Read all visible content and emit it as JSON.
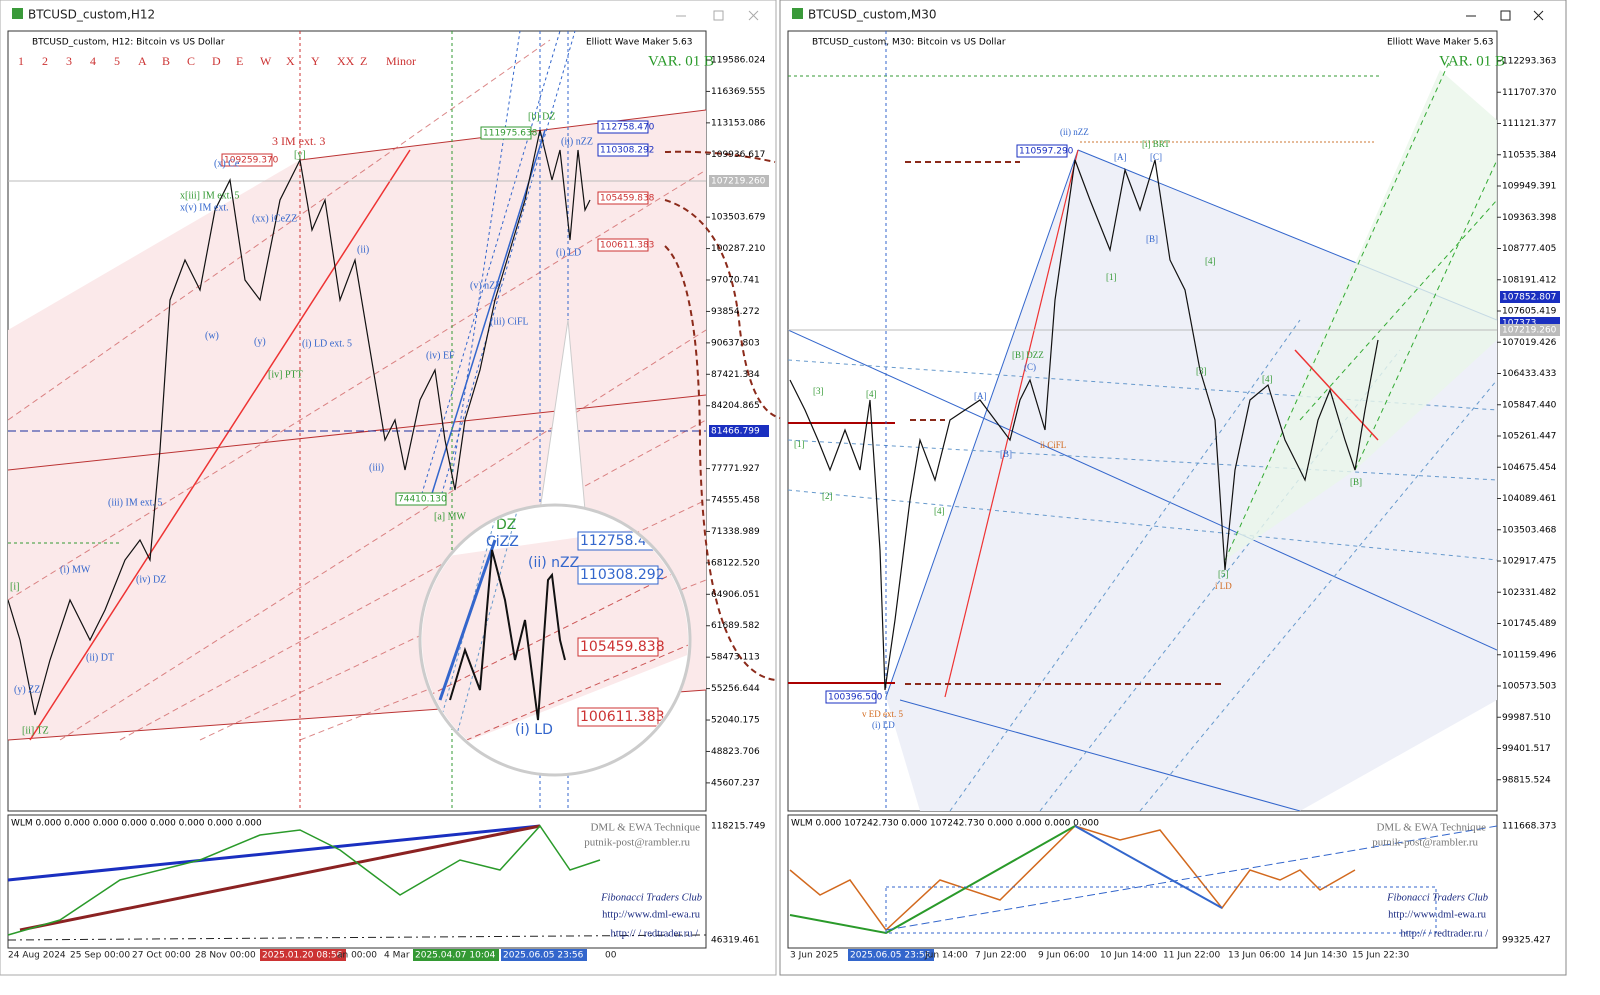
{
  "windows": [
    {
      "title": "BTCUSD_custom,H12",
      "header": "BTCUSD_custom, H12:  Bitcoin vs US Dollar",
      "brand": "Elliott Wave Maker 5.63",
      "variant": "VAR. 01 B",
      "wave_buttons": [
        "1",
        "2",
        "3",
        "4",
        "5",
        "A",
        "B",
        "C",
        "D",
        "E",
        "W",
        "X",
        "Y",
        "XX",
        "Z",
        "Minor"
      ],
      "price_axis": [
        "119586.024",
        "116369.555",
        "113153.086",
        "109936.617",
        "103503.679",
        "100287.210",
        "97070.741",
        "93854.272",
        "90637.803",
        "87421.334",
        "84204.865",
        "77771.927",
        "74555.458",
        "71338.989",
        "68122.520",
        "64906.051",
        "61689.582",
        "58473.113",
        "55256.644",
        "52040.175",
        "48823.706",
        "45607.237"
      ],
      "price_highlights": [
        "107219.260",
        "81466.799"
      ],
      "price_tags": [
        "112758.470",
        "110308.292",
        "105459.838",
        "100611.383",
        "109259.370",
        "111975.638",
        "74410.130"
      ],
      "time_axis": [
        "24 Aug 2024",
        "25 Sep 00:00",
        "27 Oct 00:00",
        "28 Nov 00:00",
        "2025.01.20 08:56",
        "an 00:00",
        "4 Mar",
        "2025.04.07 10:04",
        "2025.06.05 23:56",
        "00"
      ],
      "wave_labels": [
        "3 IM ext. 3",
        "(x) Ce",
        "[y]",
        "x[iii] IM ext. 5",
        "x(v) IM ext.",
        "(xx) iCeZZ",
        "(ii)",
        "(w)",
        "(y)",
        "(i) LD ext. 5",
        "[iv] PTT",
        "(iv) EF",
        "(iii)",
        "(v) nZZ",
        "(iii) CiFL",
        "[b] DZ",
        "(ii) nZZ",
        "(i) LD",
        "[a] MW",
        "(iii) IM ext. 5",
        "(iv) DZ",
        "(i) MW",
        "(ii) DT",
        "(y) ZZ",
        "[ii] TZ",
        "[i]"
      ],
      "zoom_labels": [
        "112758.470",
        "110308.292",
        "105459.838",
        "100611.383",
        "(ii) nZZ",
        "(i) LD",
        "DZ",
        "CiZZ"
      ],
      "indicator": {
        "header": "WLM 0.000 0.000 0.000 0.000 0.000 0.000 0.000 0.000",
        "axis": [
          "118215.749",
          "46319.461"
        ],
        "texts": [
          "DML & EWA Technique",
          "putnik-post@rambler.ru",
          "Fibonacci   Traders   Club",
          "http://www.dml-ewa.ru",
          "http:// / redtrader.ru /"
        ]
      }
    },
    {
      "title": "BTCUSD_custom,M30",
      "header": "BTCUSD_custom, M30:  Bitcoin vs US Dollar",
      "brand": "Elliott Wave Maker 5.63",
      "variant": "VAR. 01 B",
      "price_axis": [
        "112293.363",
        "111707.370",
        "111121.377",
        "110535.384",
        "109949.391",
        "109363.398",
        "108777.405",
        "108191.412",
        "107605.419",
        "107019.426",
        "106433.433",
        "105847.440",
        "105261.447",
        "104675.454",
        "104089.461",
        "103503.468",
        "102917.475",
        "102331.482",
        "101745.489",
        "101159.496",
        "100573.503",
        "99987.510",
        "99401.517",
        "98815.524"
      ],
      "price_highlights": [
        "107852.807",
        "107373",
        "107219.260"
      ],
      "price_tags": [
        "110597.290",
        "100396.500"
      ],
      "time_axis": [
        "3 Jun 2025",
        "2025.06.05 23:56",
        "Jun 14:00",
        "7 Jun 22:00",
        "9 Jun 06:00",
        "10 Jun 14:00",
        "11 Jun 22:00",
        "13 Jun 06:00",
        "14 Jun 14:30",
        "15 Jun 22:30"
      ],
      "wave_labels": [
        "(ii) nZZ",
        "[i] BRT",
        "[A]",
        "[C]",
        "[B]",
        "[1]",
        "[4]",
        "[3]",
        "[5]",
        "i LD",
        "[4]",
        "[B]",
        "[B] DZZ",
        "(C)",
        "[A]",
        "[B]",
        "[3]",
        "[1]",
        "[2]",
        "[4]",
        "[4]",
        "v ED ext. 5",
        "(i) LD",
        "ii CiFL"
      ],
      "indicator": {
        "header": "WLM 0.000  107242.730  0.000  107242.730  0.000  0.000  0.000  0.000",
        "axis": [
          "111668.373",
          "99325.427"
        ],
        "texts": [
          "DML & EWA Technique",
          "putnik-post@rambler.ru",
          "Fibonacci   Traders   Club",
          "http://www.dml-ewa.ru",
          "http:// / redtrader.ru /"
        ]
      }
    }
  ]
}
